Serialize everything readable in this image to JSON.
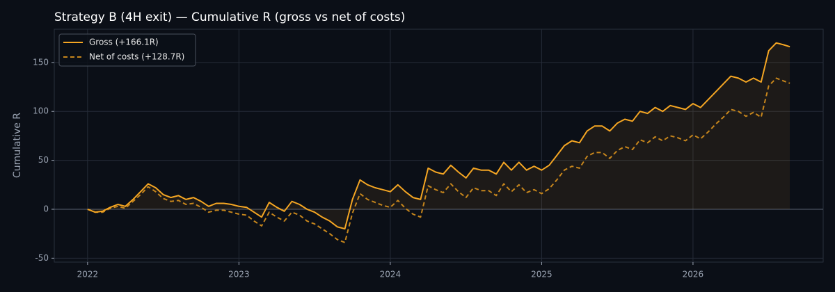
{
  "chart_data": {
    "type": "line",
    "title": "Strategy B (4H exit) — Cumulative R (gross vs net of costs)",
    "y_label": "Cumulative R",
    "x": [
      2022,
      2022.05,
      2022.1,
      2022.15,
      2022.2,
      2022.25,
      2022.3,
      2022.35,
      2022.4,
      2022.45,
      2022.5,
      2022.55,
      2022.6,
      2022.65,
      2022.7,
      2022.75,
      2022.8,
      2022.85,
      2022.9,
      2022.95,
      2023,
      2023.05,
      2023.1,
      2023.15,
      2023.2,
      2023.25,
      2023.3,
      2023.35,
      2023.4,
      2023.45,
      2023.5,
      2023.55,
      2023.6,
      2023.65,
      2023.7,
      2023.75,
      2023.8,
      2023.85,
      2023.9,
      2023.95,
      2024,
      2024.05,
      2024.1,
      2024.15,
      2024.2,
      2024.25,
      2024.3,
      2024.35,
      2024.4,
      2024.45,
      2024.5,
      2024.55,
      2024.6,
      2024.65,
      2024.7,
      2024.75,
      2024.8,
      2024.85,
      2024.9,
      2024.95,
      2025,
      2025.05,
      2025.1,
      2025.15,
      2025.2,
      2025.25,
      2025.3,
      2025.35,
      2025.4,
      2025.45,
      2025.5,
      2025.55,
      2025.6,
      2025.65,
      2025.7,
      2025.75,
      2025.8,
      2025.85,
      2025.9,
      2025.95,
      2026,
      2026.05,
      2026.1,
      2026.15,
      2026.2,
      2026.25,
      2026.3,
      2026.35,
      2026.4,
      2026.45,
      2026.5,
      2026.55,
      2026.6,
      2026.64
    ],
    "series": [
      {
        "name": "Gross (+166.1R)",
        "color": "#f5a623",
        "style": "solid",
        "values": [
          0,
          -3,
          -2,
          2,
          5,
          3,
          10,
          18,
          26,
          22,
          15,
          12,
          14,
          10,
          12,
          8,
          3,
          6,
          6,
          5,
          3,
          2,
          -3,
          -8,
          7,
          2,
          -2,
          8,
          5,
          0,
          -3,
          -8,
          -12,
          -18,
          -20,
          10,
          30,
          25,
          22,
          20,
          18,
          25,
          18,
          12,
          10,
          42,
          38,
          36,
          45,
          38,
          32,
          42,
          40,
          40,
          36,
          48,
          40,
          48,
          40,
          44,
          40,
          45,
          55,
          65,
          70,
          68,
          80,
          85,
          85,
          80,
          88,
          92,
          90,
          100,
          98,
          104,
          100,
          106,
          104,
          102,
          108,
          104,
          112,
          120,
          128,
          136,
          134,
          130,
          134,
          130,
          162,
          170,
          168,
          166.1
        ]
      },
      {
        "name": "Net of costs (+128.7R)",
        "color": "#c7861c",
        "style": "dashed",
        "values": [
          0,
          -3,
          -3,
          1,
          3,
          1,
          8,
          15,
          23,
          18,
          11,
          8,
          9,
          5,
          6,
          2,
          -3,
          -1,
          -1,
          -3,
          -5,
          -6,
          -12,
          -17,
          -3,
          -8,
          -12,
          -3,
          -6,
          -12,
          -15,
          -20,
          -25,
          -31,
          -34,
          -4,
          16,
          10,
          7,
          4,
          2,
          9,
          1,
          -5,
          -8,
          24,
          20,
          17,
          26,
          18,
          12,
          22,
          19,
          19,
          14,
          26,
          18,
          25,
          17,
          20,
          16,
          21,
          30,
          40,
          44,
          42,
          54,
          58,
          58,
          52,
          60,
          64,
          61,
          71,
          68,
          74,
          70,
          75,
          73,
          70,
          76,
          72,
          79,
          87,
          94,
          102,
          100,
          95,
          99,
          94,
          126,
          134,
          131,
          128.7
        ]
      }
    ],
    "xlim": [
      2021.78,
      2026.86
    ],
    "xticks": [
      2022,
      2023,
      2024,
      2025,
      2026
    ],
    "ylim": [
      -54,
      184
    ],
    "yticks": [
      -50,
      0,
      50,
      100,
      150
    ],
    "grid": true,
    "legend": "upper left"
  }
}
